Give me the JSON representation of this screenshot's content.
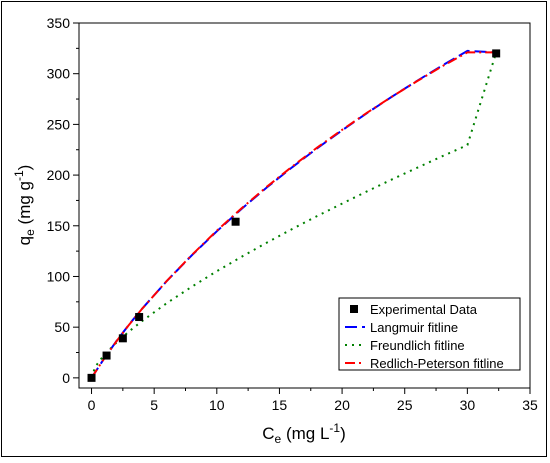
{
  "chart_data": {
    "type": "scatter",
    "xlabel_main": "C",
    "xlabel_sub": "e",
    "xlabel_rest": " (mg L",
    "xlabel_sup": "-1",
    "xlabel_end": ")",
    "ylabel_main": "q",
    "ylabel_sub": "e",
    "ylabel_rest": " (mg g",
    "ylabel_sup": "-1",
    "ylabel_end": ")",
    "xlim": [
      -1,
      35
    ],
    "ylim": [
      -10,
      350
    ],
    "xticks": [
      0,
      5,
      10,
      15,
      20,
      25,
      30,
      35
    ],
    "yticks": [
      0,
      50,
      100,
      150,
      200,
      250,
      300,
      350
    ],
    "grid": false,
    "legend_position": "bottom-right",
    "experimental": {
      "name": "Experimental Data",
      "color": "#000000",
      "x": [
        0,
        1.2,
        2.5,
        3.8,
        11.5,
        32.3
      ],
      "y": [
        0,
        22,
        39,
        60,
        154,
        320
      ]
    },
    "series": [
      {
        "name": "Langmuir fitline",
        "color": "#0000ff",
        "dash": "12,5",
        "x": [
          0,
          1,
          2,
          3,
          4,
          6,
          8,
          10,
          12,
          14,
          16,
          18,
          20,
          22,
          24,
          26,
          28,
          30,
          32.3
        ],
        "y": [
          0,
          19,
          36.5,
          52.6,
          67.6,
          95.4,
          120.9,
          144.6,
          166.9,
          187.9,
          207.6,
          226.3,
          244.2,
          261.2,
          277.5,
          293.1,
          308.1,
          322.5,
          321
        ]
      },
      {
        "name": "Freundlich fitline",
        "color": "#008000",
        "dash": "2,5",
        "x": [
          0,
          0.3,
          1,
          2,
          3,
          4,
          6,
          8,
          10,
          12,
          14,
          16,
          18,
          20,
          22,
          24,
          26,
          28,
          30,
          32.3
        ],
        "y": [
          0,
          11,
          22.5,
          35,
          45.8,
          55.7,
          73.6,
          89.9,
          105.2,
          119.6,
          133.4,
          146.7,
          159.5,
          171.9,
          184,
          195.8,
          207.3,
          218.6,
          229.6,
          321
        ]
      },
      {
        "name": "Redlich-Peterson fitline",
        "color": "#ff0000",
        "dash": "10,4,2,4",
        "x": [
          0,
          1,
          2,
          3,
          4,
          6,
          8,
          10,
          12,
          14,
          16,
          18,
          20,
          22,
          24,
          26,
          28,
          30,
          32.3
        ],
        "y": [
          0,
          19,
          36.3,
          52.4,
          67.5,
          95.5,
          121.2,
          145.1,
          167.5,
          188.5,
          208.3,
          227,
          244.7,
          261.5,
          277.5,
          292.8,
          307.4,
          321,
          321
        ]
      }
    ]
  }
}
